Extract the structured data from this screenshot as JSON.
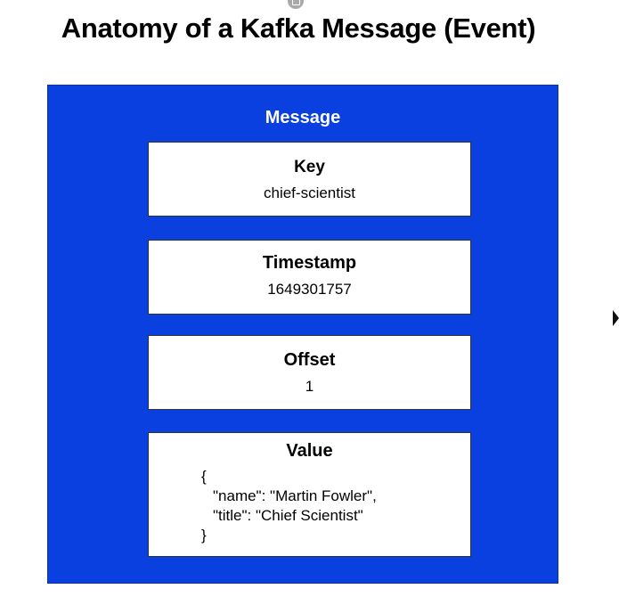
{
  "title": "Anatomy of a Kafka Message (Event)",
  "message": {
    "label": "Message",
    "fields": {
      "key": {
        "label": "Key",
        "value": "chief-scientist"
      },
      "timestamp": {
        "label": "Timestamp",
        "value": "1649301757"
      },
      "offset": {
        "label": "Offset",
        "value": "1"
      },
      "value": {
        "label": "Value",
        "lines": [
          "{",
          "\"name\": \"Martin Fowler\",",
          "\"title\": \"Chief Scientist\"",
          "}"
        ]
      }
    }
  },
  "colors": {
    "message_background": "#0a3fe0",
    "field_background": "#ffffff",
    "field_border": "#333333"
  },
  "icons": [
    "copy-icon",
    "mouse-cursor-icon"
  ]
}
